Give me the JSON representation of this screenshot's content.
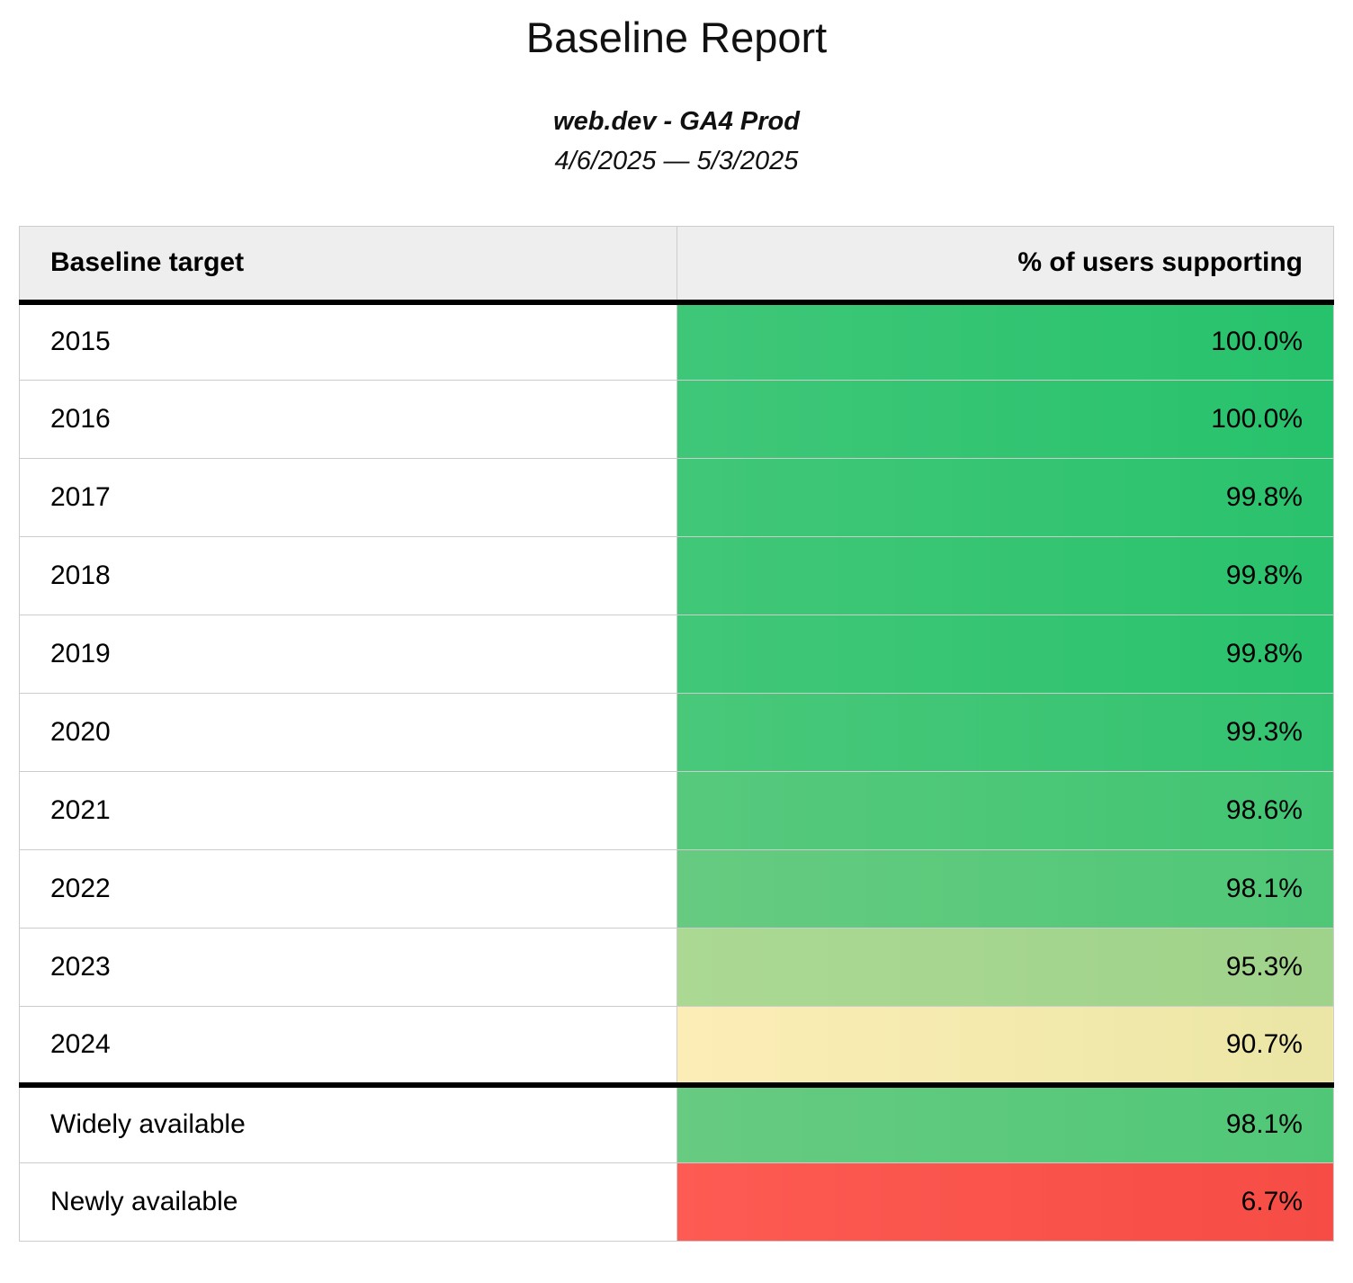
{
  "header": {
    "title": "Baseline Report",
    "subtitle": "web.dev - GA4 Prod",
    "date_range": "4/6/2025 — 5/3/2025"
  },
  "palette": {
    "header_bg": "#eeeeee",
    "grid_border": "#cccccc",
    "strong_border": "#000000",
    "green_full": "#2bc26e",
    "yellow_warn": "#f3e9ad",
    "red_low": "#f9544c"
  },
  "table": {
    "columns": {
      "target": "Baseline target",
      "value": "% of users supporting"
    },
    "rows": [
      {
        "target": "2015",
        "value": "100.0%",
        "bg": "linear-gradient(90deg, #3fc778, #27c26c)"
      },
      {
        "target": "2016",
        "value": "100.0%",
        "bg": "linear-gradient(90deg, #3fc778, #27c26c)"
      },
      {
        "target": "2017",
        "value": "99.8%",
        "bg": "linear-gradient(90deg, #41c778, #2ac26d)"
      },
      {
        "target": "2018",
        "value": "99.8%",
        "bg": "linear-gradient(90deg, #41c778, #2ac26d)"
      },
      {
        "target": "2019",
        "value": "99.8%",
        "bg": "linear-gradient(90deg, #41c778, #2ac26d)"
      },
      {
        "target": "2020",
        "value": "99.3%",
        "bg": "linear-gradient(90deg, #49c87a, #33c370)"
      },
      {
        "target": "2021",
        "value": "98.6%",
        "bg": "linear-gradient(90deg, #57c97d, #41c573)"
      },
      {
        "target": "2022",
        "value": "98.1%",
        "bg": "linear-gradient(90deg, #66cb80, #4fc777)"
      },
      {
        "target": "2023",
        "value": "95.3%",
        "bg": "linear-gradient(90deg, #abd994, #9fd28a)"
      },
      {
        "target": "2024",
        "value": "90.7%",
        "bg": "linear-gradient(90deg, #fcedb6, #ebe6a5)"
      },
      {
        "target": "Widely available",
        "value": "98.1%",
        "bg": "linear-gradient(90deg, #67cb81, #50c777)"
      },
      {
        "target": "Newly available",
        "value": "6.7%",
        "bg": "linear-gradient(90deg, #fd5b53, #f64c45)"
      }
    ]
  },
  "chart_data": {
    "type": "table",
    "title": "Baseline Report",
    "subtitle": "web.dev - GA4 Prod",
    "date_range": "4/6/2025 — 5/3/2025",
    "columns": [
      "Baseline target",
      "% of users supporting"
    ],
    "categories": [
      "2015",
      "2016",
      "2017",
      "2018",
      "2019",
      "2020",
      "2021",
      "2022",
      "2023",
      "2024",
      "Widely available",
      "Newly available"
    ],
    "values": [
      100.0,
      100.0,
      99.8,
      99.8,
      99.8,
      99.3,
      98.6,
      98.1,
      95.3,
      90.7,
      98.1,
      6.7
    ],
    "color_coding": "green=high support, yellow=medium, red=low"
  }
}
